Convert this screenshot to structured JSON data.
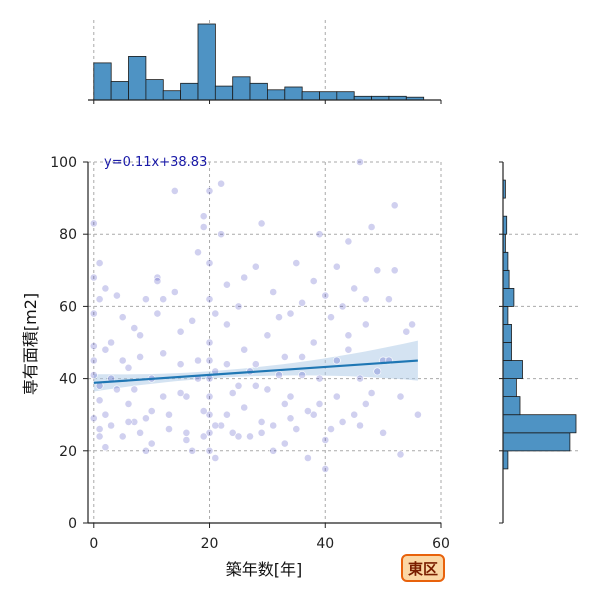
{
  "chart_data": {
    "type": "scatter",
    "annotation": "y=0.11x+38.83",
    "badge": "東区",
    "xlabel": "築年数[年]",
    "ylabel": "専有面積[m2]",
    "xlim": [
      -1,
      60
    ],
    "ylim": [
      0,
      100
    ],
    "x_ticks": [
      0,
      20,
      40,
      60
    ],
    "y_ticks": [
      0,
      20,
      40,
      60,
      80,
      100
    ],
    "grid": true,
    "regression": {
      "slope": 0.11,
      "intercept": 38.83,
      "x_start": 0,
      "x_end": 56
    },
    "colors": {
      "points": "#2b2bb8",
      "line": "#1f77b4",
      "band": "#aac8e6",
      "hist": "#4e93c4",
      "badge_fill": "#fbd7a5",
      "badge_stroke": "#e8620c"
    },
    "points": [
      [
        0,
        83
      ],
      [
        1,
        72
      ],
      [
        0,
        68
      ],
      [
        1,
        62
      ],
      [
        0,
        58
      ],
      [
        0,
        49
      ],
      [
        0,
        45
      ],
      [
        0,
        41
      ],
      [
        1,
        38
      ],
      [
        1,
        34
      ],
      [
        0,
        29
      ],
      [
        1,
        24
      ],
      [
        2,
        30
      ],
      [
        3,
        40
      ],
      [
        2,
        48
      ],
      [
        4,
        37
      ],
      [
        3,
        27
      ],
      [
        2,
        21
      ],
      [
        4,
        63
      ],
      [
        5,
        57
      ],
      [
        6,
        43
      ],
      [
        6,
        33
      ],
      [
        5,
        24
      ],
      [
        7,
        28
      ],
      [
        7,
        37
      ],
      [
        8,
        46
      ],
      [
        8,
        52
      ],
      [
        9,
        62
      ],
      [
        9,
        20
      ],
      [
        10,
        31
      ],
      [
        10,
        40
      ],
      [
        11,
        68
      ],
      [
        11,
        58
      ],
      [
        12,
        47
      ],
      [
        12,
        35
      ],
      [
        13,
        26
      ],
      [
        14,
        92
      ],
      [
        14,
        64
      ],
      [
        15,
        53
      ],
      [
        15,
        44
      ],
      [
        16,
        35
      ],
      [
        16,
        25
      ],
      [
        17,
        20
      ],
      [
        18,
        75
      ],
      [
        18,
        40
      ],
      [
        19,
        82
      ],
      [
        19,
        85
      ],
      [
        20,
        92
      ],
      [
        20,
        72
      ],
      [
        20,
        62
      ],
      [
        20,
        50
      ],
      [
        20,
        45
      ],
      [
        20,
        40
      ],
      [
        20,
        35
      ],
      [
        20,
        30
      ],
      [
        20,
        25
      ],
      [
        20,
        20
      ],
      [
        21,
        58
      ],
      [
        21,
        42
      ],
      [
        21,
        18
      ],
      [
        22,
        94
      ],
      [
        22,
        80
      ],
      [
        23,
        66
      ],
      [
        23,
        55
      ],
      [
        23,
        44
      ],
      [
        23,
        30
      ],
      [
        24,
        25
      ],
      [
        25,
        60
      ],
      [
        25,
        38
      ],
      [
        26,
        48
      ],
      [
        26,
        32
      ],
      [
        27,
        24
      ],
      [
        28,
        71
      ],
      [
        28,
        44
      ],
      [
        29,
        83
      ],
      [
        29,
        28
      ],
      [
        30,
        37
      ],
      [
        31,
        64
      ],
      [
        31,
        20
      ],
      [
        32,
        57
      ],
      [
        33,
        46
      ],
      [
        33,
        22
      ],
      [
        34,
        35
      ],
      [
        35,
        72
      ],
      [
        35,
        26
      ],
      [
        36,
        61
      ],
      [
        36,
        41
      ],
      [
        37,
        18
      ],
      [
        38,
        67
      ],
      [
        38,
        50
      ],
      [
        38,
        30
      ],
      [
        39,
        80
      ],
      [
        39,
        40
      ],
      [
        40,
        23
      ],
      [
        40,
        15
      ],
      [
        41,
        57
      ],
      [
        42,
        45
      ],
      [
        42,
        35
      ],
      [
        43,
        60
      ],
      [
        43,
        28
      ],
      [
        44,
        78
      ],
      [
        44,
        48
      ],
      [
        45,
        65
      ],
      [
        46,
        40
      ],
      [
        46,
        27
      ],
      [
        47,
        55
      ],
      [
        48,
        82
      ],
      [
        48,
        36
      ],
      [
        49,
        70
      ],
      [
        50,
        45
      ],
      [
        50,
        25
      ],
      [
        51,
        62
      ],
      [
        52,
        88
      ],
      [
        52,
        70
      ],
      [
        53,
        35
      ],
      [
        53,
        19
      ],
      [
        54,
        53
      ],
      [
        56,
        30
      ],
      [
        3,
        50
      ],
      [
        5,
        45
      ],
      [
        8,
        25
      ],
      [
        10,
        22
      ],
      [
        12,
        62
      ],
      [
        15,
        36
      ],
      [
        17,
        56
      ],
      [
        19,
        31
      ],
      [
        22,
        27
      ],
      [
        24,
        36
      ],
      [
        26,
        68
      ],
      [
        27,
        42
      ],
      [
        30,
        52
      ],
      [
        32,
        41
      ],
      [
        34,
        58
      ],
      [
        37,
        31
      ],
      [
        40,
        63
      ],
      [
        41,
        26
      ],
      [
        44,
        52
      ],
      [
        47,
        33
      ],
      [
        49,
        42
      ],
      [
        55,
        55
      ],
      [
        1,
        26
      ],
      [
        6,
        28
      ],
      [
        9,
        29
      ],
      [
        13,
        30
      ],
      [
        16,
        23
      ],
      [
        19,
        24
      ],
      [
        21,
        27
      ],
      [
        25,
        24
      ],
      [
        29,
        25
      ],
      [
        31,
        27
      ],
      [
        34,
        29
      ],
      [
        39,
        33
      ],
      [
        45,
        30
      ],
      [
        2,
        65
      ],
      [
        7,
        54
      ],
      [
        11,
        67
      ],
      [
        18,
        45
      ],
      [
        28,
        38
      ],
      [
        33,
        33
      ],
      [
        36,
        46
      ],
      [
        42,
        71
      ],
      [
        47,
        62
      ],
      [
        51,
        45
      ],
      [
        46,
        100
      ]
    ],
    "x_histogram": {
      "bin_edges": [
        0,
        3,
        6,
        9,
        12,
        15,
        18,
        21,
        24,
        27,
        30,
        33,
        36,
        39,
        42,
        45,
        48,
        51,
        54,
        57
      ],
      "counts": [
        40,
        20,
        47,
        22,
        10,
        18,
        82,
        15,
        25,
        18,
        11,
        14,
        9,
        9,
        9,
        4,
        4,
        4,
        3
      ]
    },
    "y_histogram": {
      "bin_edges": [
        15,
        20,
        25,
        30,
        35,
        40,
        45,
        50,
        55,
        60,
        65,
        70,
        75,
        80,
        85,
        90,
        95,
        100
      ],
      "counts": [
        4,
        55,
        60,
        14,
        11,
        16,
        7,
        7,
        4,
        9,
        5,
        4,
        2,
        3,
        0,
        2,
        0
      ]
    }
  }
}
